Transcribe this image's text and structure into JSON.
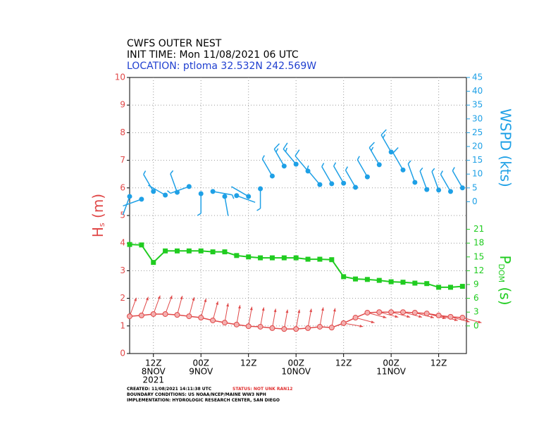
{
  "header": {
    "lines": [
      "CWFS OUTER NEST",
      "INIT TIME: Mon 11/08/2021 06 UTC"
    ],
    "location": "LOCATION: ptloma 32.532N 242.569W"
  },
  "footer": {
    "created": "CREATED: 11/08/2021 14:11:38 UTC",
    "status": "STATUS: NOT UNK RAN12",
    "boundary": "BOUNDARY CONDITIONS: US NOAA/NCEP/MAINE WW3 NPH",
    "implementation": "IMPLEMENTATION: HYDROLOGIC RESEARCH CENTER, SAN DIEGO"
  },
  "chart_data": {
    "type": "line",
    "y_label": [
      "H",
      "s",
      " (m)"
    ],
    "y2_label": "WSPD (kts)",
    "y3_label": [
      "P",
      "DOM",
      " (s)"
    ],
    "x": [
      6,
      9,
      12,
      15,
      18,
      21,
      24,
      27,
      30,
      33,
      36,
      39,
      42,
      45,
      48,
      51,
      54,
      57,
      60,
      63,
      66,
      69,
      72,
      75,
      78,
      81,
      84,
      87,
      90
    ],
    "xlim": [
      6,
      91
    ],
    "xticks": [
      {
        "value": 12,
        "label": [
          "12Z",
          "8NOV",
          "2021"
        ]
      },
      {
        "value": 24,
        "label": [
          "00Z",
          "9NOV"
        ]
      },
      {
        "value": 36,
        "label": [
          "12Z"
        ]
      },
      {
        "value": 48,
        "label": [
          "00Z",
          "10NOV"
        ]
      },
      {
        "value": 60,
        "label": [
          "12Z"
        ]
      },
      {
        "value": 72,
        "label": [
          "00Z",
          "11NOV"
        ]
      },
      {
        "value": 84,
        "label": [
          "12Z"
        ]
      }
    ],
    "ylim": [
      0,
      10
    ],
    "yticks": [
      0,
      1,
      2,
      3,
      4,
      5,
      6,
      7,
      8,
      9,
      10
    ],
    "y2lim": [
      -55,
      45
    ],
    "y2ticks": [
      0,
      5,
      10,
      15,
      20,
      25,
      30,
      35,
      40,
      45
    ],
    "y3lim": [
      -6,
      54
    ],
    "y3ticks": [
      0,
      3,
      6,
      9,
      12,
      15,
      18,
      21
    ],
    "grid": true,
    "series": [
      {
        "name": "Hs",
        "color": "#e04848",
        "axis": "y",
        "values": [
          1.35,
          1.38,
          1.43,
          1.43,
          1.4,
          1.35,
          1.3,
          1.2,
          1.12,
          1.05,
          0.99,
          0.97,
          0.92,
          0.89,
          0.89,
          0.92,
          0.97,
          0.94,
          1.1,
          1.3,
          1.48,
          1.5,
          1.5,
          1.5,
          1.48,
          1.45,
          1.38,
          1.33,
          1.3
        ],
        "directions": [
          200,
          200,
          200,
          200,
          195,
          195,
          195,
          195,
          190,
          190,
          190,
          190,
          190,
          190,
          190,
          190,
          190,
          190,
          280,
          285,
          285,
          285,
          285,
          285,
          285,
          285,
          285,
          285,
          285
        ]
      },
      {
        "name": "WSPD",
        "color": "#1ea0e6",
        "axis": "y2",
        "values": [
          1.9,
          0.9,
          3.7,
          2.4,
          3.4,
          5.5,
          2.9,
          3.7,
          1.9,
          2.2,
          1.9,
          4.7,
          9.3,
          12.9,
          13.6,
          11.1,
          6.2,
          6.5,
          6.7,
          5.2,
          9.0,
          13.4,
          18.0,
          11.5,
          7.0,
          4.4,
          4.2,
          3.7,
          5.0
        ],
        "directions": [
          200,
          250,
          330,
          300,
          340,
          250,
          180,
          100,
          170,
          110,
          300,
          180,
          330,
          330,
          320,
          320,
          320,
          330,
          330,
          330,
          330,
          330,
          330,
          330,
          340,
          340,
          340,
          330,
          330
        ]
      },
      {
        "name": "PDOM",
        "color": "#20cc20",
        "axis": "y3",
        "values": [
          17.7,
          17.6,
          13.8,
          16.3,
          16.3,
          16.3,
          16.3,
          16.1,
          16.1,
          15.3,
          15.0,
          14.8,
          14.8,
          14.8,
          14.8,
          14.5,
          14.5,
          14.4,
          10.7,
          10.2,
          10.1,
          9.9,
          9.6,
          9.5,
          9.3,
          9.2,
          8.4,
          8.4,
          8.6
        ]
      }
    ]
  }
}
